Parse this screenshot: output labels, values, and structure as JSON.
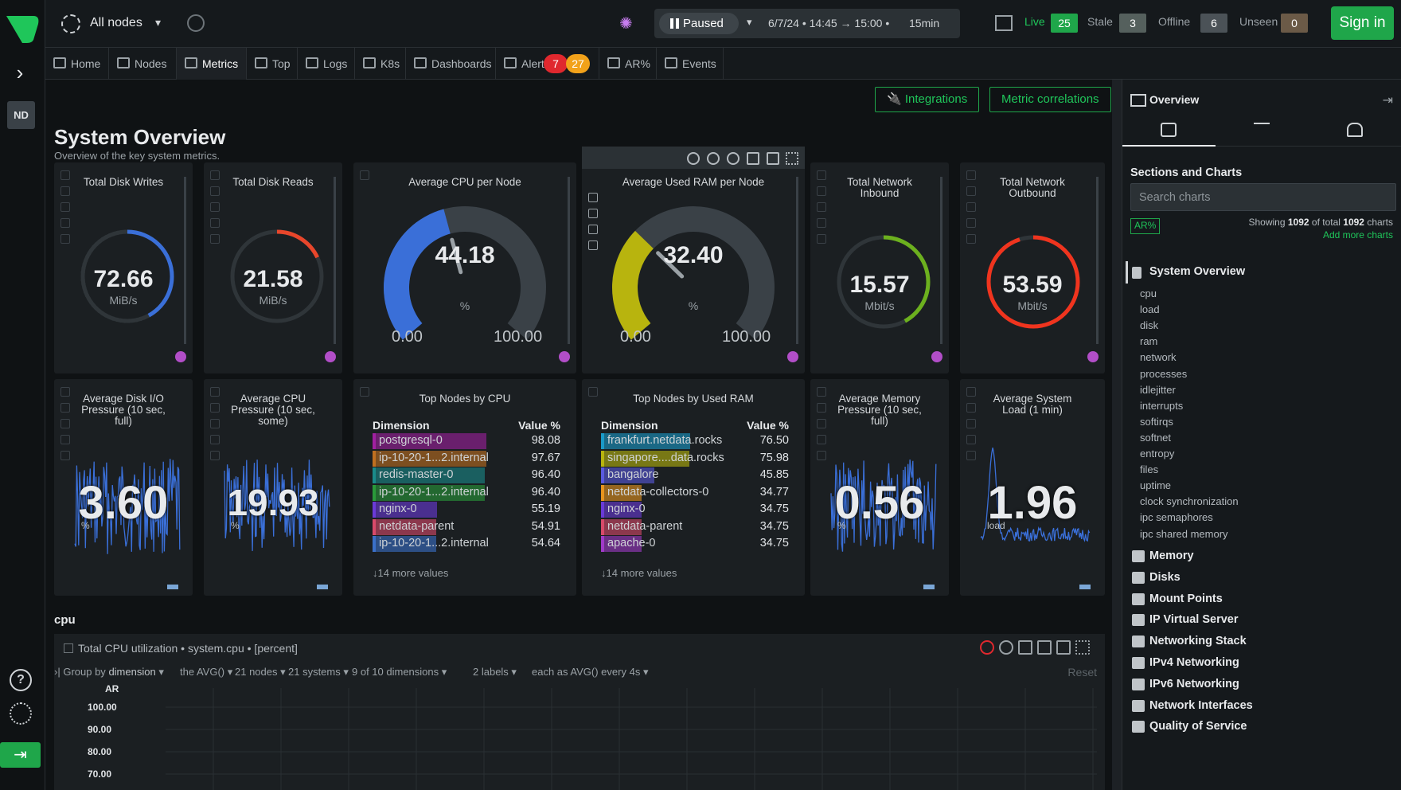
{
  "topbar": {
    "nodes_label": "All nodes",
    "pause_label": "Paused",
    "time_range": "6/7/24 • 14:45 → 15:00 •",
    "duration": "15min",
    "status": {
      "live_label": "Live",
      "live_count": "25",
      "stale_label": "Stale",
      "stale_count": "3",
      "offline_label": "Offline",
      "offline_count": "6",
      "unseen_label": "Unseen",
      "unseen_count": "0"
    },
    "signin_label": "Sign in"
  },
  "rail": {
    "space_initials": "ND"
  },
  "nav": {
    "tabs": [
      {
        "label": "Home"
      },
      {
        "label": "Nodes"
      },
      {
        "label": "Metrics"
      },
      {
        "label": "Top"
      },
      {
        "label": "Logs"
      },
      {
        "label": "K8s"
      },
      {
        "label": "Dashboards"
      },
      {
        "label": "Alerts"
      },
      {
        "label": "AR%"
      },
      {
        "label": "Events"
      }
    ],
    "alerts_critical": "7",
    "alerts_warning": "27"
  },
  "main": {
    "integrations_label": "Integrations",
    "correlations_label": "Metric correlations",
    "title": "System Overview",
    "subtitle": "Overview of the key system metrics.",
    "gauges": [
      {
        "title": "Total Disk Writes",
        "value": "72.66",
        "unit": "MiB/s",
        "fraction": 0.42,
        "color": "#3a6fd8"
      },
      {
        "title": "Total Disk Reads",
        "value": "21.58",
        "unit": "MiB/s",
        "fraction": 0.18,
        "color": "#e8462b"
      },
      {
        "title": "Total Network Inbound",
        "value": "15.57",
        "unit": "Mbit/s",
        "fraction": 0.42,
        "color": "#6cb01e"
      },
      {
        "title": "Total Network Outbound",
        "value": "53.59",
        "unit": "Mbit/s",
        "fraction": 0.95,
        "color": "#f0341e"
      }
    ],
    "half_gauges": [
      {
        "title": "Average CPU per Node",
        "value": "44.18",
        "unit": "%",
        "min": "0.00",
        "max": "100.00",
        "percent": 44.18,
        "color": "#3a6fd8"
      },
      {
        "title": "Average Used RAM per Node",
        "value": "32.40",
        "unit": "%",
        "min": "0.00",
        "max": "100.00",
        "percent": 32.4,
        "color": "#b8b40e"
      }
    ],
    "sparks": [
      {
        "title": "Average Disk I/O Pressure (10 sec, full)",
        "value": "3.60",
        "unit": "%"
      },
      {
        "title": "Average CPU Pressure (10 sec, some)",
        "value": "19.93",
        "unit": "%"
      },
      {
        "title": "Average Memory Pressure (10 sec, full)",
        "value": "0.56",
        "unit": "%"
      },
      {
        "title": "Average System Load (1 min)",
        "value": "1.96",
        "unit": "load"
      }
    ],
    "top_cpu": {
      "title": "Top Nodes by CPU",
      "col_dim": "Dimension",
      "col_val": "Value %",
      "rows": [
        {
          "name": "postgresql-0",
          "value": "98.08",
          "color": "#a020a0"
        },
        {
          "name": "ip-10-20-1...2.internal",
          "value": "97.67",
          "color": "#c07020"
        },
        {
          "name": "redis-master-0",
          "value": "96.40",
          "color": "#1a8a8a"
        },
        {
          "name": "ip-10-20-1...2.internal",
          "value": "96.40",
          "color": "#2a9a3a"
        },
        {
          "name": "nginx-0",
          "value": "55.19",
          "color": "#6a3ad8"
        },
        {
          "name": "netdata-parent",
          "value": "54.91",
          "color": "#d84a6a"
        },
        {
          "name": "ip-10-20-1...2.internal",
          "value": "54.64",
          "color": "#3a70c8"
        }
      ],
      "more": "↓14 more values"
    },
    "top_ram": {
      "title": "Top Nodes by Used RAM",
      "col_dim": "Dimension",
      "col_val": "Value %",
      "rows": [
        {
          "name": "frankfurt.netdata.rocks",
          "value": "76.50",
          "color": "#1a9ac8"
        },
        {
          "name": "singapore....data.rocks",
          "value": "75.98",
          "color": "#b8b40e"
        },
        {
          "name": "bangalore",
          "value": "45.85",
          "color": "#5a5ae0"
        },
        {
          "name": "netdata-collectors-0",
          "value": "34.77",
          "color": "#e8941e"
        },
        {
          "name": "nginx-0",
          "value": "34.75",
          "color": "#6a3ad8"
        },
        {
          "name": "netdata-parent",
          "value": "34.75",
          "color": "#d84a6a"
        },
        {
          "name": "apache-0",
          "value": "34.75",
          "color": "#a03ac8"
        }
      ],
      "more": "↓14 more values"
    },
    "cpu_section": {
      "label": "cpu",
      "chart_title": "Total CPU utilization • system.cpu • [percent]",
      "filters": {
        "group": "Group by",
        "group_val": "dimension",
        "agg": "the AVG()",
        "nodes": "21 nodes",
        "systems": "21 systems",
        "dims": "9 of 10 dimensions",
        "labels": "2 labels",
        "each": "each as AVG() every 4s"
      },
      "reset": "Reset",
      "ar_label": "AR",
      "yticks": [
        "100.00",
        "90.00",
        "80.00",
        "70.00"
      ]
    }
  },
  "right_panel": {
    "header": "Overview",
    "section_title": "Sections and Charts",
    "search_placeholder": "Search charts",
    "ar_label": "AR%",
    "showing_pre": "Showing",
    "showing_count": "1092",
    "showing_mid": "of total",
    "total_count": "1092",
    "showing_post": "charts",
    "add_more": "Add more charts",
    "active_section": "System Overview",
    "subsections": [
      "cpu",
      "load",
      "disk",
      "ram",
      "network",
      "processes",
      "idlejitter",
      "interrupts",
      "softirqs",
      "softnet",
      "entropy",
      "files",
      "uptime",
      "clock synchronization",
      "ipc semaphores",
      "ipc shared memory"
    ],
    "sections": [
      "Memory",
      "Disks",
      "Mount Points",
      "IP Virtual Server",
      "Networking Stack",
      "IPv4 Networking",
      "IPv6 Networking",
      "Network Interfaces",
      "Quality of Service"
    ]
  }
}
